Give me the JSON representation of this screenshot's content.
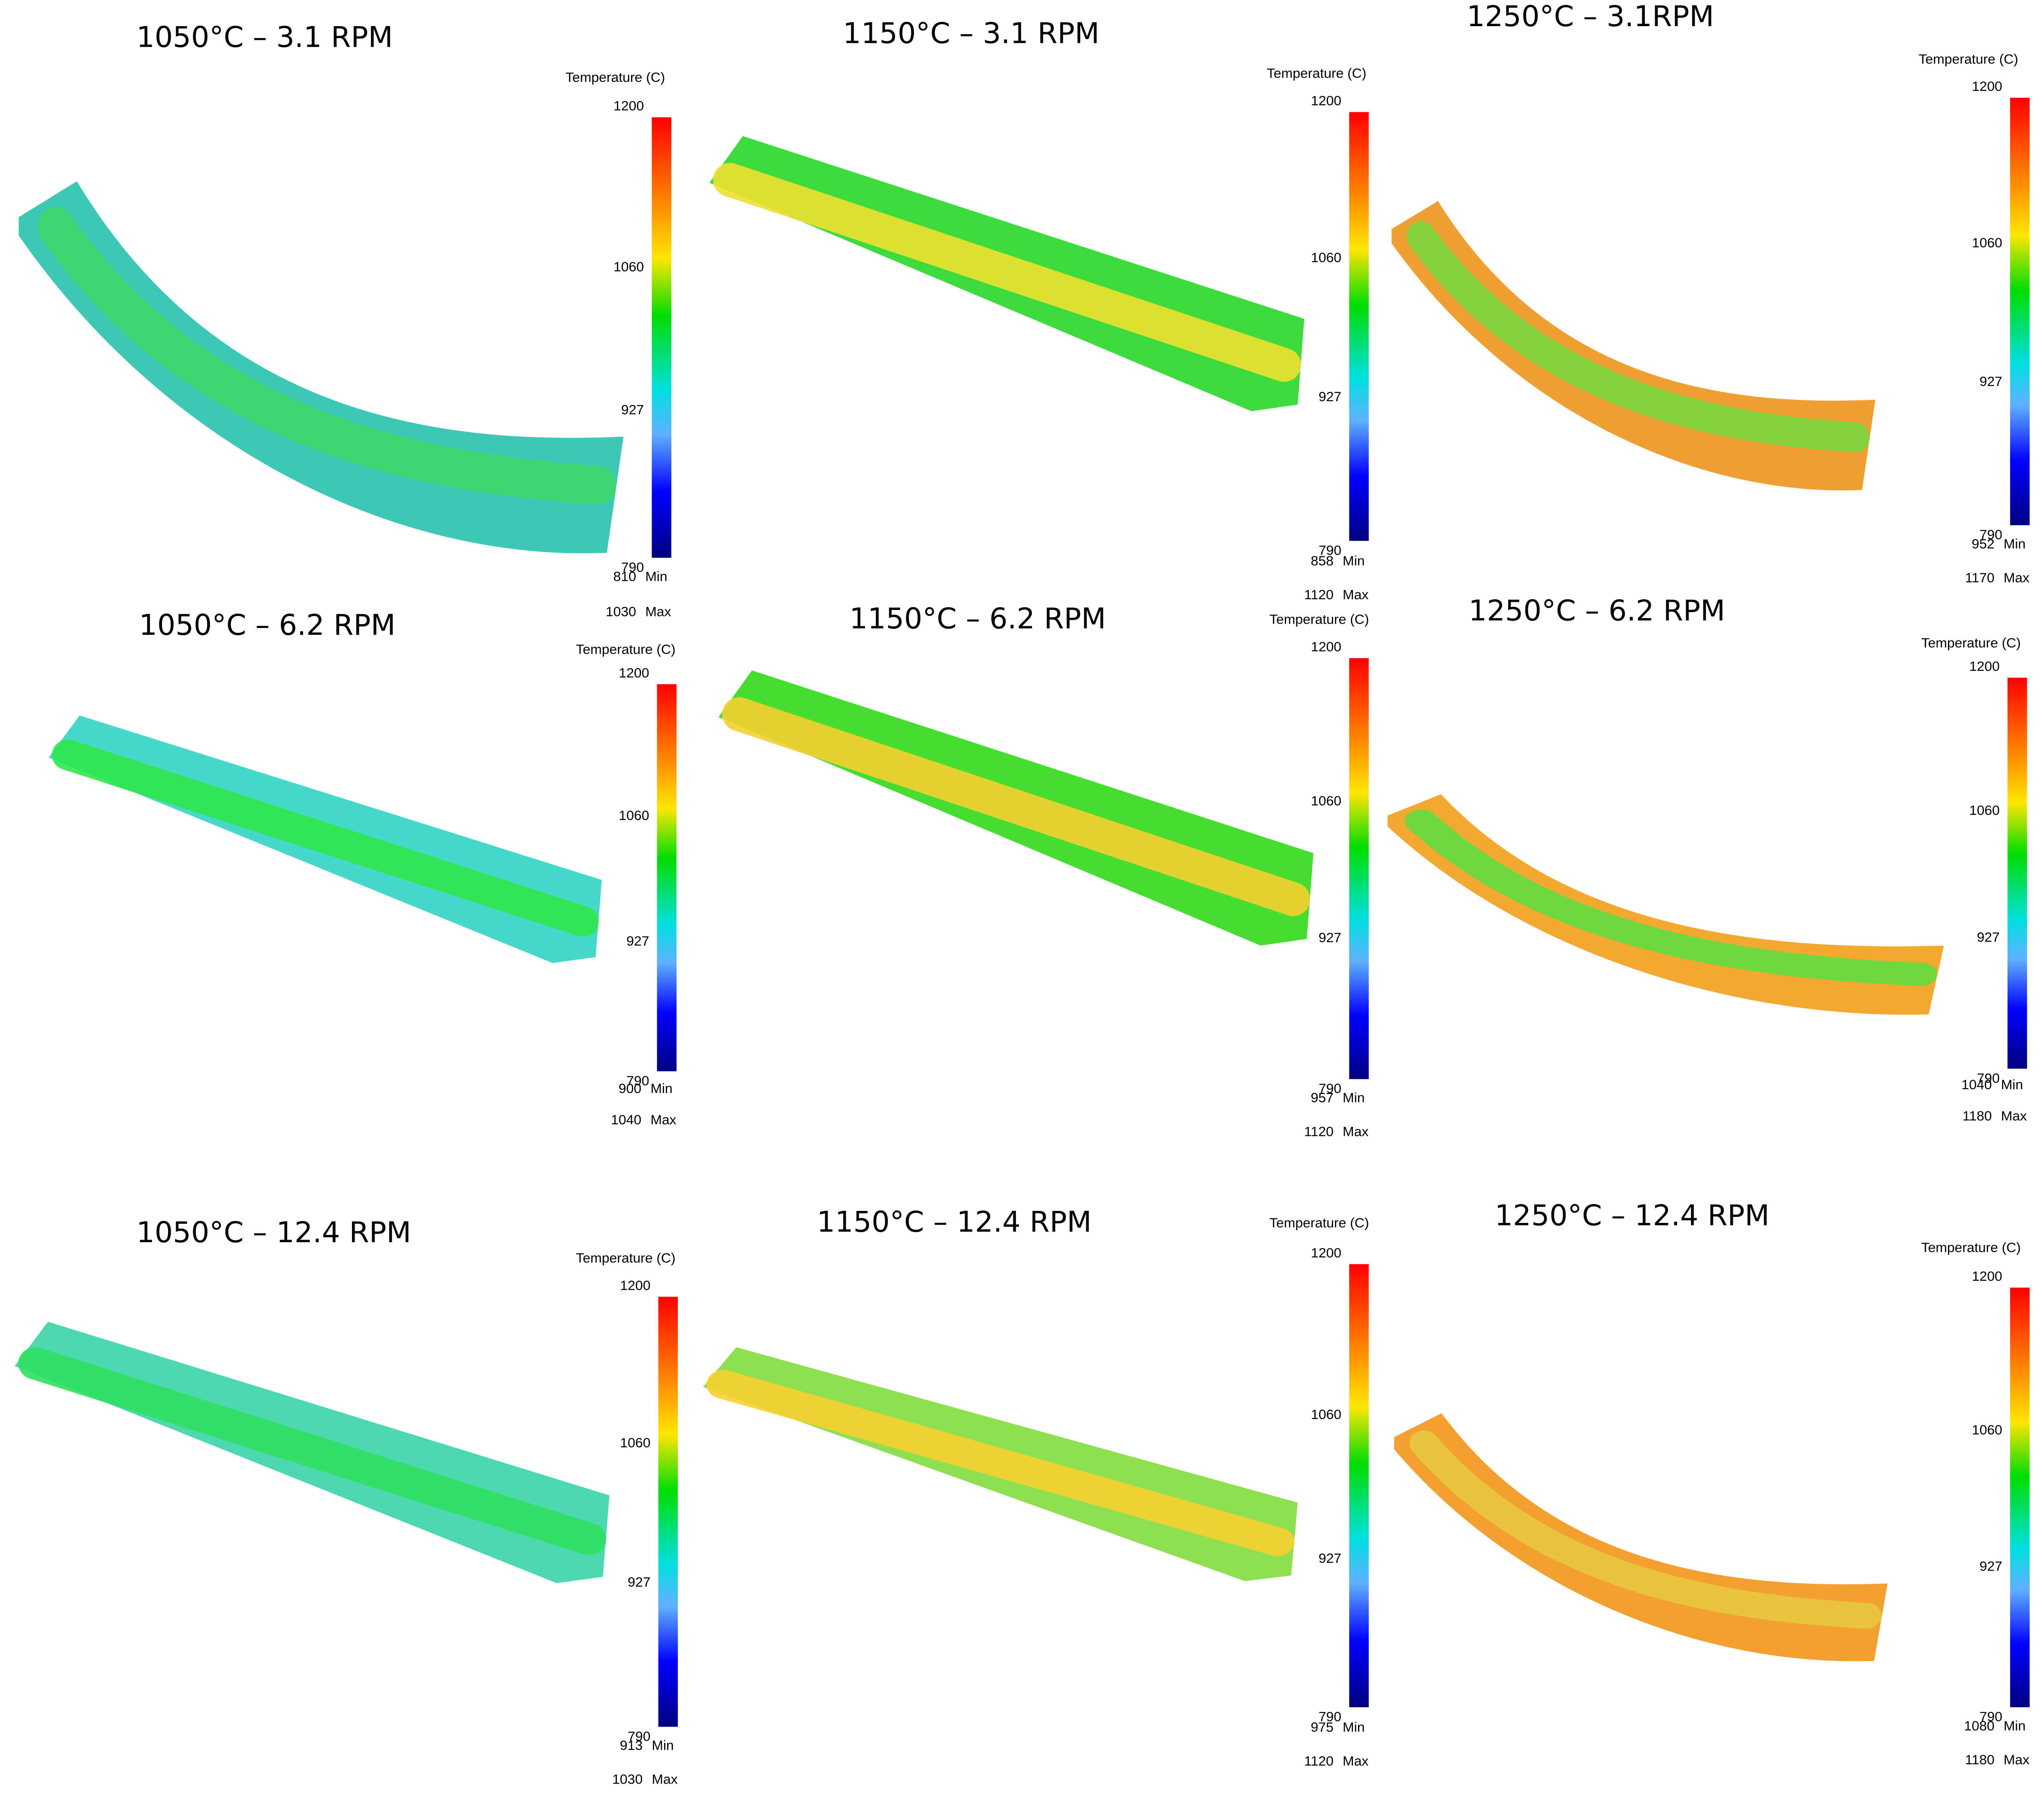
{
  "panels": [
    {
      "title": "1050°C – 3.1 RPM",
      "legend_title": "Temperature (C)",
      "ticks": [
        1200,
        1060,
        927,
        790
      ],
      "min": 810,
      "min_label": "Min",
      "max": 1030,
      "max_label": "Max"
    },
    {
      "title": "1150°C – 3.1 RPM",
      "legend_title": "Temperature (C)",
      "ticks": [
        1200,
        1060,
        927,
        790
      ],
      "min": 858,
      "min_label": "Min",
      "max": 1120,
      "max_label": "Max"
    },
    {
      "title": "1250°C – 3.1RPM",
      "legend_title": "Temperature (C)",
      "ticks": [
        1200,
        1060,
        927,
        790
      ],
      "min": 952,
      "min_label": "Min",
      "max": 1170,
      "max_label": "Max"
    },
    {
      "title": "1050°C – 6.2 RPM",
      "legend_title": "Temperature (C)",
      "ticks": [
        1200,
        1060,
        927,
        790
      ],
      "min": 900,
      "min_label": "Min",
      "max": 1040,
      "max_label": "Max"
    },
    {
      "title": "1150°C – 6.2 RPM",
      "legend_title": "Temperature (C)",
      "ticks": [
        1200,
        1060,
        927,
        790
      ],
      "min": 957,
      "min_label": "Min",
      "max": 1120,
      "max_label": "Max"
    },
    {
      "title": "1250°C – 6.2 RPM",
      "legend_title": "Temperature (C)",
      "ticks": [
        1200,
        1060,
        927,
        790
      ],
      "min": 1040,
      "min_label": "Min",
      "max": 1180,
      "max_label": "Max"
    },
    {
      "title": "1050°C – 12.4 RPM",
      "legend_title": "Temperature (C)",
      "ticks": [
        1200,
        1060,
        927,
        790
      ],
      "min": 913,
      "min_label": "Min",
      "max": 1030,
      "max_label": "Max"
    },
    {
      "title": "1150°C – 12.4 RPM",
      "legend_title": "Temperature (C)",
      "ticks": [
        1200,
        1060,
        927,
        790
      ],
      "min": 975,
      "min_label": "Min",
      "max": 1120,
      "max_label": "Max"
    },
    {
      "title": "1250°C – 12.4 RPM",
      "legend_title": "Temperature (C)",
      "ticks": [
        1200,
        1060,
        927,
        790
      ],
      "min": 1080,
      "min_label": "Min",
      "max": 1180,
      "max_label": "Max"
    }
  ]
}
